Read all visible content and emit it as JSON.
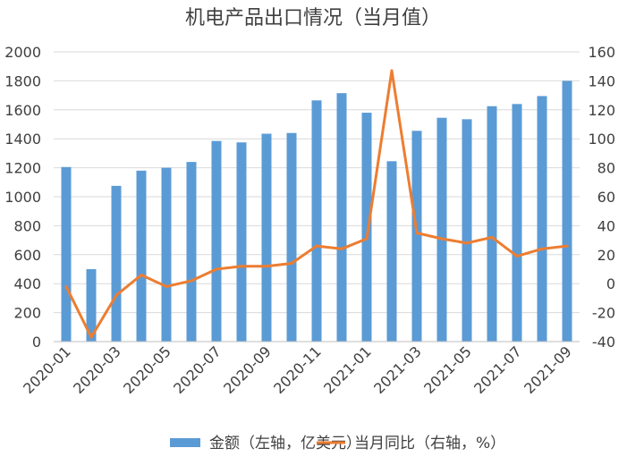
{
  "chart_data": {
    "type": "bar+line",
    "title": "机电产品出口情况（当月值）",
    "categories": [
      "2020-01",
      "2020-02",
      "2020-03",
      "2020-04",
      "2020-05",
      "2020-06",
      "2020-07",
      "2020-08",
      "2020-09",
      "2020-10",
      "2020-11",
      "2020-12",
      "2021-01",
      "2021-02",
      "2021-03",
      "2021-04",
      "2021-05",
      "2021-06",
      "2021-07",
      "2021-08",
      "2021-09"
    ],
    "x_tick_labels": [
      "2020-01",
      "2020-03",
      "2020-05",
      "2020-07",
      "2020-09",
      "2020-11",
      "2021-01",
      "2021-03",
      "2021-05",
      "2021-07",
      "2021-09"
    ],
    "series": [
      {
        "name": "金额（左轴，亿美元）",
        "type": "bar",
        "axis": "left",
        "color": "#5B9BD5",
        "values": [
          1205,
          500,
          1075,
          1180,
          1200,
          1240,
          1385,
          1375,
          1435,
          1440,
          1665,
          1715,
          1580,
          1245,
          1455,
          1545,
          1535,
          1625,
          1640,
          1695,
          1800
        ]
      },
      {
        "name": "当月同比（右轴，%）",
        "type": "line",
        "axis": "right",
        "color": "#ED7D31",
        "values": [
          -2,
          -37,
          -8,
          6,
          -2,
          2,
          10,
          12,
          12,
          14,
          26,
          24,
          31,
          147,
          35,
          31,
          28,
          32,
          19,
          24,
          26
        ]
      }
    ],
    "y_left": {
      "min": 0,
      "max": 2000,
      "ticks": [
        0,
        200,
        400,
        600,
        800,
        1000,
        1200,
        1400,
        1600,
        1800,
        2000
      ]
    },
    "y_right": {
      "min": -40,
      "max": 160,
      "ticks": [
        -40,
        -20,
        0,
        20,
        40,
        60,
        80,
        100,
        120,
        140,
        160
      ]
    },
    "grid": true,
    "legend_position": "bottom"
  }
}
